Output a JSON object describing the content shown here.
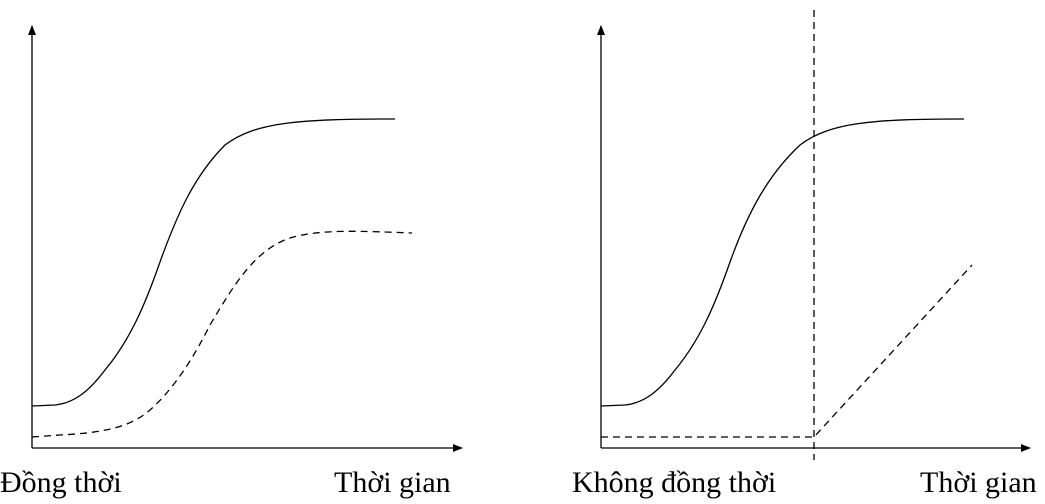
{
  "panels": [
    {
      "caption": "Đồng thời",
      "x_label": "Thời gian",
      "curves": [
        {
          "style": "solid",
          "shape": "sigmoid"
        },
        {
          "style": "dashed",
          "shape": "sigmoid"
        }
      ]
    },
    {
      "caption": "Không đồng thời",
      "x_label": "Thời gian",
      "curves": [
        {
          "style": "solid",
          "shape": "sigmoid"
        },
        {
          "style": "dashed",
          "shape": "flat-then-linear"
        }
      ],
      "marker": {
        "style": "dashed",
        "orientation": "vertical"
      }
    }
  ],
  "colors": {
    "ink": "#000000",
    "background": "#ffffff"
  }
}
